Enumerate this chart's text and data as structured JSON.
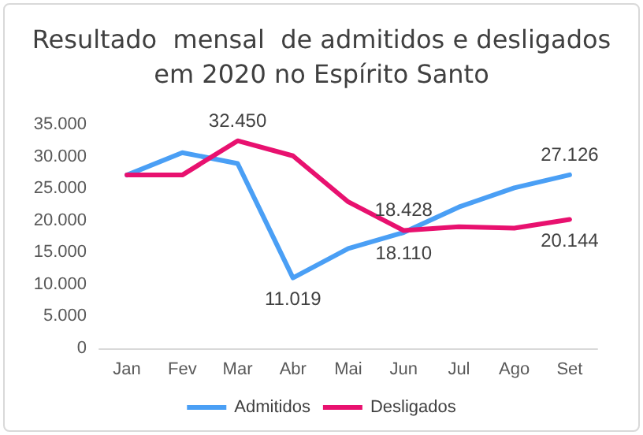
{
  "chart_data": {
    "type": "line",
    "title": "Resultado  mensal  de admitidos e desligados\nem 2020 no Espírito Santo",
    "categories": [
      "Jan",
      "Fev",
      "Mar",
      "Abr",
      "Mai",
      "Jun",
      "Jul",
      "Ago",
      "Set"
    ],
    "series": [
      {
        "name": "Admitidos",
        "color": "#4a9ff5",
        "values": [
          27100,
          30600,
          28900,
          11019,
          15600,
          18110,
          22100,
          25100,
          27126
        ],
        "value_labels": [
          null,
          null,
          null,
          "11.019",
          null,
          "18.110",
          null,
          null,
          "27.126"
        ]
      },
      {
        "name": "Desligados",
        "color": "#e8116f",
        "values": [
          27100,
          27100,
          32450,
          30100,
          22900,
          18428,
          19000,
          18800,
          20144
        ],
        "value_labels": [
          null,
          null,
          "32.450",
          null,
          null,
          "18.428",
          null,
          null,
          "20.144"
        ]
      }
    ],
    "ylim": [
      0,
      35000
    ],
    "yticks": [
      {
        "value": 0,
        "label": "0"
      },
      {
        "value": 5000,
        "label": "5.000"
      },
      {
        "value": 10000,
        "label": "10.000"
      },
      {
        "value": 15000,
        "label": "15.000"
      },
      {
        "value": 20000,
        "label": "20.000"
      },
      {
        "value": 25000,
        "label": "25.000"
      },
      {
        "value": 30000,
        "label": "30.000"
      },
      {
        "value": 35000,
        "label": "35.000"
      }
    ],
    "grid": false,
    "legend": "bottom",
    "marker": "none",
    "line_style": "solid"
  }
}
